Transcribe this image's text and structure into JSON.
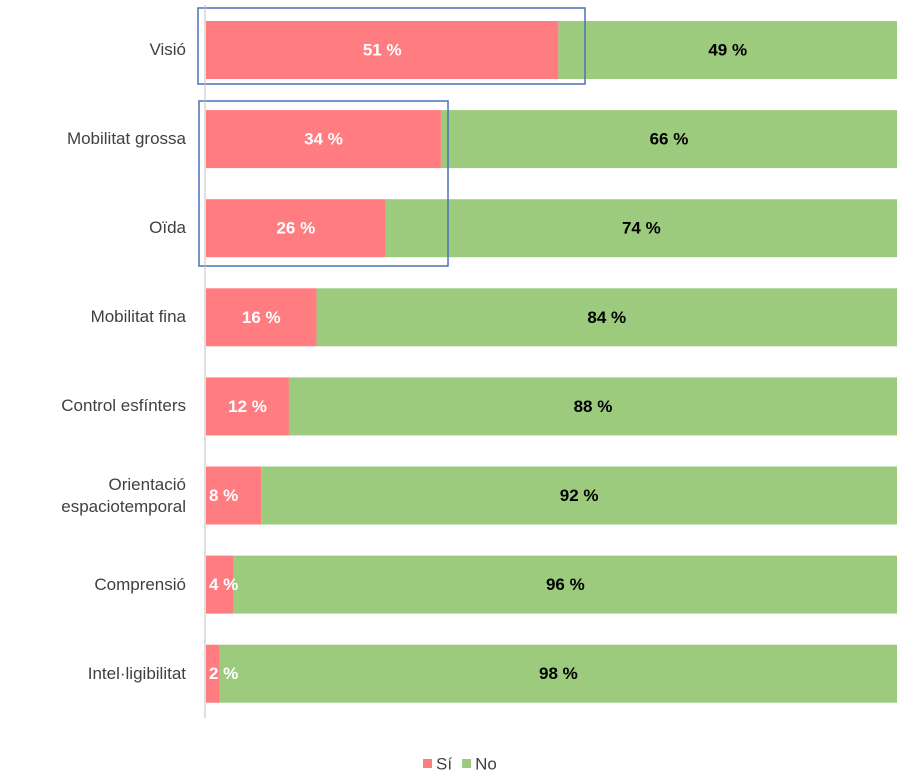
{
  "chart_data": {
    "type": "stacked_bar_horizontal_percent",
    "categories": [
      "Visió",
      "Mobilitat grossa",
      "Oïda",
      "Mobilitat fina",
      "Control esfínters",
      "Orientació espaciotemporal",
      "Comprensió",
      "Intel·ligibilitat"
    ],
    "series": [
      {
        "name": "Sí",
        "color": "#ff7c80",
        "values": [
          51,
          34,
          26,
          16,
          12,
          8,
          4,
          2
        ],
        "value_labels": [
          "51 %",
          "34 %",
          "26 %",
          "16 %",
          "12 %",
          "8 %",
          "4 %",
          "2 %"
        ]
      },
      {
        "name": "No",
        "color": "#9ccb7e",
        "values": [
          49,
          66,
          74,
          84,
          88,
          92,
          96,
          98
        ],
        "value_labels": [
          "49 %",
          "66 %",
          "74 %",
          "84 %",
          "88 %",
          "92 %",
          "96 %",
          "98 %"
        ]
      }
    ],
    "xlim": [
      0,
      100
    ],
    "legend": "bottom"
  }
}
